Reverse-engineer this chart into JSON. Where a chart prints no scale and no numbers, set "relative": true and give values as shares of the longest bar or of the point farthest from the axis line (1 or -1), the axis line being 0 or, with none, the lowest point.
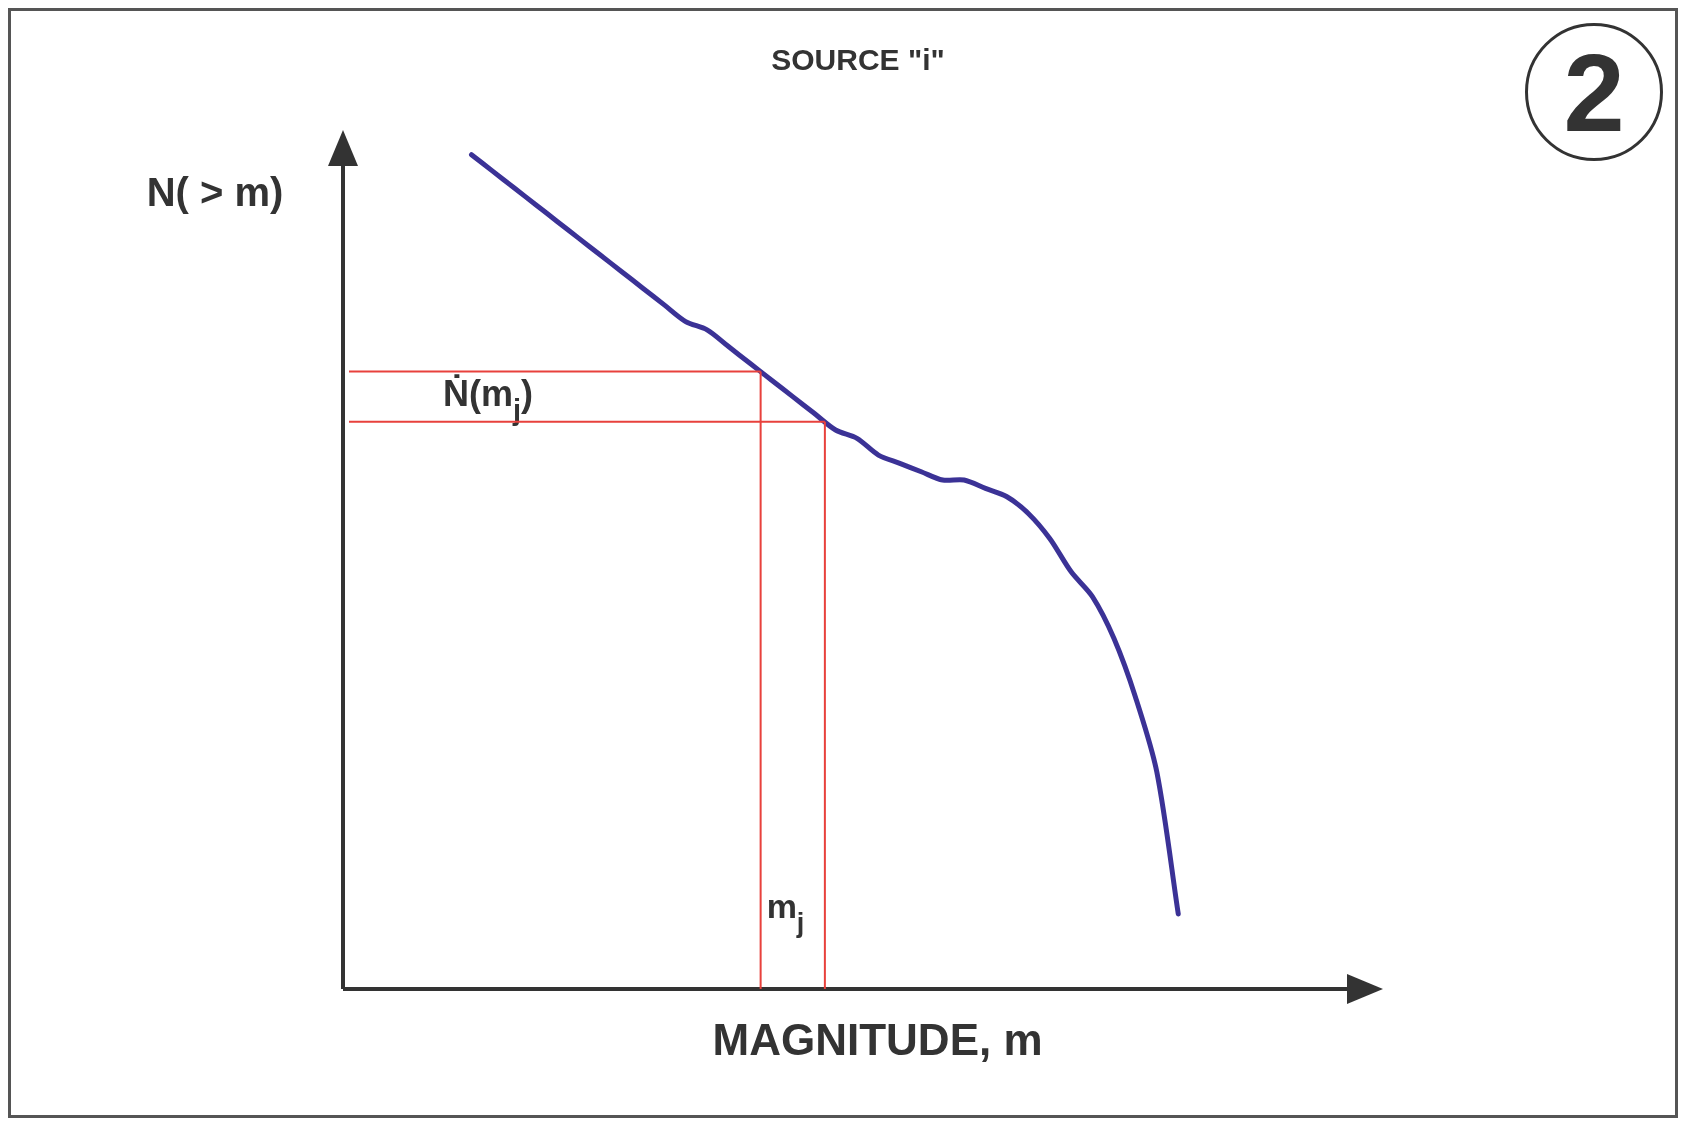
{
  "chart_data": {
    "type": "line",
    "title": "SOURCE \"i\"",
    "xlabel": "MAGNITUDE, m",
    "ylabel": "N( > m)",
    "relative": true,
    "categories": [
      null,
      null,
      null,
      null,
      null,
      null,
      null,
      null,
      null,
      null,
      null,
      null,
      null,
      null,
      null,
      null,
      null,
      null,
      null,
      null,
      null,
      null,
      null,
      null,
      null,
      null,
      null,
      null,
      null,
      null,
      null,
      null,
      null,
      null,
      null,
      null,
      null,
      null,
      null,
      null,
      null,
      null,
      null,
      null,
      null,
      null,
      null,
      null,
      null
    ],
    "series": [
      {
        "color": "#3b3296",
        "values": [
          null,
          null,
          null,
          null,
          null,
          null,
          1,
          0.98,
          0.96,
          0.94,
          0.92,
          0.9,
          0.88,
          0.86,
          0.84,
          0.82,
          0.8,
          0.79,
          0.77,
          0.75,
          0.73,
          0.71,
          0.69,
          0.67,
          0.66,
          0.64,
          0.63,
          0.62,
          0.61,
          0.61,
          0.6,
          0.59,
          0.57,
          0.54,
          0.5,
          0.47,
          0.42,
          0.35,
          0.26,
          0.09,
          null,
          null,
          null,
          null,
          null,
          null,
          null,
          null,
          null
        ]
      }
    ],
    "ref_lines": [
      {
        "axis": "y",
        "value": 0.74,
        "label": "Ṅ(m$_{j}$)",
        "color": "#e8413c"
      },
      {
        "axis": "y",
        "value": 0.68,
        "color": "#e8413c"
      }
    ],
    "annotations": [
      "2",
      "m$_{j}$"
    ]
  }
}
